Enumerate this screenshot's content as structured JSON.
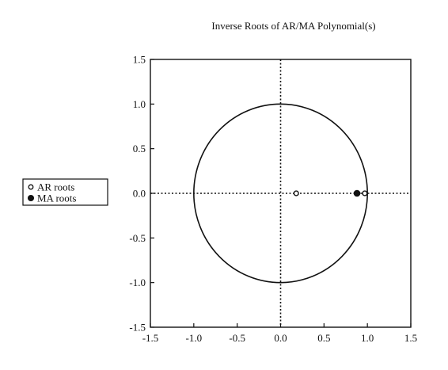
{
  "chart_data": {
    "type": "scatter",
    "title": "Inverse Roots of AR/MA Polynomial(s)",
    "xlabel": "",
    "ylabel": "",
    "xlim": [
      -1.5,
      1.5
    ],
    "ylim": [
      -1.5,
      1.5
    ],
    "xticks": [
      "-1.5",
      "-1.0",
      "-0.5",
      "0.0",
      "0.5",
      "1.0",
      "1.5"
    ],
    "yticks": [
      "1.5",
      "1.0",
      "0.5",
      "0.0",
      "-0.5",
      "-1.0",
      "-1.5"
    ],
    "unit_circle": true,
    "reference_lines": {
      "x": 0,
      "y": 0,
      "style": "dotted"
    },
    "legend_position": "left",
    "series": [
      {
        "name": "AR roots",
        "marker": "open-circle",
        "points": [
          [
            0.18,
            0.0
          ],
          [
            0.97,
            0.0
          ]
        ]
      },
      {
        "name": "MA roots",
        "marker": "filled-circle",
        "points": [
          [
            0.88,
            0.0
          ]
        ]
      }
    ],
    "colors": {
      "line": "#111111",
      "background": "#ffffff"
    }
  }
}
